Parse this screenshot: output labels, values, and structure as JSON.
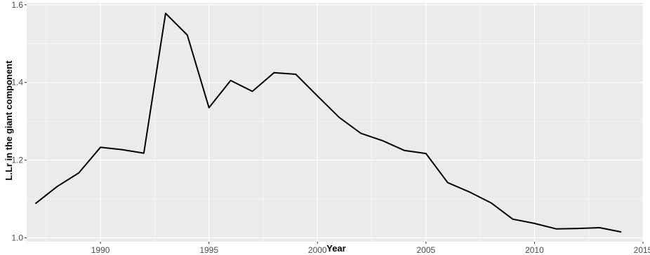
{
  "chart_data": {
    "type": "line",
    "title": "",
    "xlabel": "Year",
    "ylabel": "L.Lr in the giant component",
    "xlim": [
      1986.6,
      2015.0
    ],
    "ylim": [
      0.99,
      1.605
    ],
    "x_ticks": [
      1990,
      1995,
      2000,
      2005,
      2010,
      2015
    ],
    "y_ticks": [
      1.0,
      1.2,
      1.4,
      1.6
    ],
    "x_tick_labels": [
      "1990",
      "1995",
      "2000",
      "2005",
      "2010",
      "2015"
    ],
    "y_tick_labels": [
      "1.0",
      "1.2",
      "1.4",
      "1.6"
    ],
    "grid": true,
    "legend": "none",
    "colors": {
      "panel": "#ebebeb",
      "grid": "#ffffff",
      "line": "#000000"
    },
    "series": [
      {
        "x": [
          1987,
          1988,
          1989,
          1990,
          1991,
          1992,
          1993,
          1994,
          1995,
          1996,
          1997,
          1998,
          1999,
          2000,
          2001,
          2002,
          2003,
          2004,
          2005,
          2006,
          2007,
          2008,
          2009,
          2010,
          2011,
          2012,
          2013,
          2014
        ],
        "y": [
          1.088,
          1.132,
          1.167,
          1.233,
          1.227,
          1.218,
          1.578,
          1.522,
          1.335,
          1.405,
          1.377,
          1.425,
          1.421,
          1.365,
          1.31,
          1.269,
          1.25,
          1.225,
          1.217,
          1.142,
          1.118,
          1.09,
          1.048,
          1.037,
          1.023,
          1.024,
          1.026,
          1.015
        ]
      }
    ]
  }
}
